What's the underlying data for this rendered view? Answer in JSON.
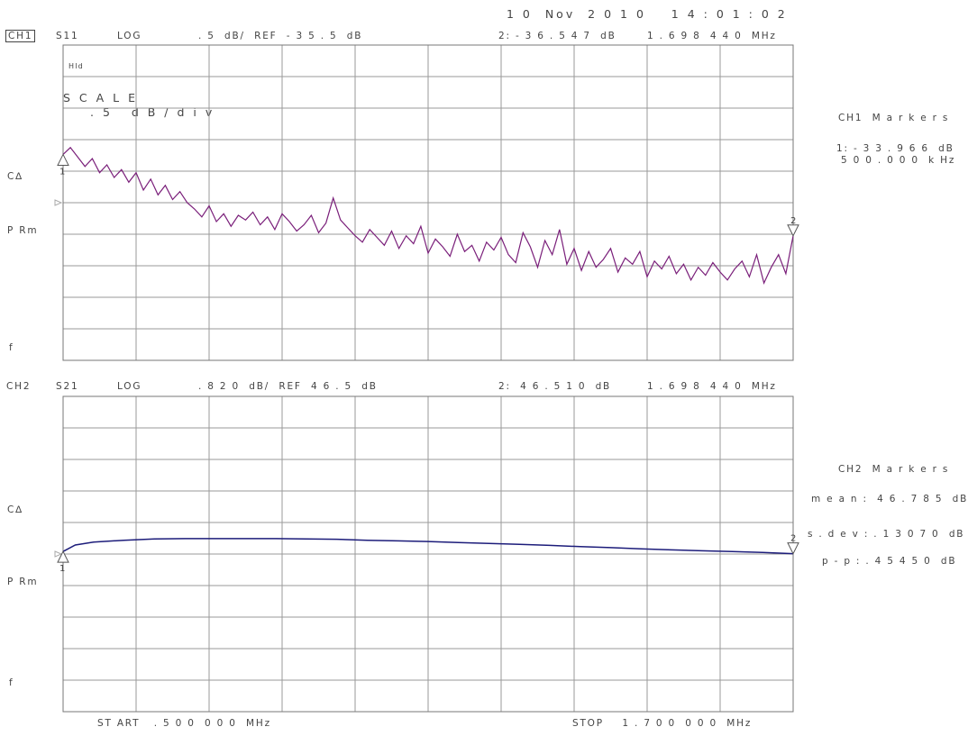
{
  "header": {
    "datetime": "1 0  Nov  2 0 1 0    1 4 : 0 1 : 0 2"
  },
  "ch1": {
    "channel": "CH1",
    "param": "S11",
    "format": "LOG",
    "scale": ". 5  dB/  REF  - 3 5 . 5  dB",
    "marker_readout_val": "2: - 3 6 . 5 4 7  dB",
    "marker_readout_freq": "1 . 6 9 8  4 4 0  MHz",
    "scale_title": "S C A L E",
    "scale_value": ". 5   d B / d i v",
    "corner_mark": "Hld",
    "left_labels": {
      "ca": "C∆",
      "prm": "P Rm",
      "f": "f"
    },
    "markers_title": "CH1  M a r k e r s",
    "marker1_val": "1: - 3 3 . 9 6 6  dB",
    "marker1_freq": "5 0 0 . 0 0 0  k Hz",
    "marker1_num": "1",
    "marker2_num": "2"
  },
  "ch2": {
    "channel": "CH2",
    "param": "S21",
    "format": "LOG",
    "scale": ". 8 2 0  dB/  REF  4 6 . 5  dB",
    "marker_readout_val": "2:  4 6 . 5 1 0  dB",
    "marker_readout_freq": "1 . 6 9 8  4 4 0  MHz",
    "left_labels": {
      "ca": "C∆",
      "prm": "P Rm",
      "f": "f"
    },
    "markers_title": "CH2  M a r k e r s",
    "mean": "m e a n :  4 6 . 7 8 5  dB",
    "sdev": "s . d e v : . 1 3 0 7 0  dB",
    "pp": "p - p : . 4 5 4 5 0  dB",
    "marker1_num": "1",
    "marker2_num": "2"
  },
  "footer": {
    "start": "ST ART   . 5 0 0  0 0 0  MHz",
    "stop": "STOP    1 . 7 0 0  0 0 0  MHz"
  },
  "colors": {
    "ch1_trace": "#7a1f7a",
    "ch2_trace": "#1c1c7a",
    "grid": "#9a9a9a"
  },
  "chart_data": [
    {
      "type": "line",
      "name": "S11",
      "xlim": [
        0.5,
        1.7
      ],
      "ylim": [
        -40.5,
        -30.5
      ],
      "ref": -35.5,
      "scale_per_div": 0.5,
      "xlabel": "MHz",
      "ylabel": "dB",
      "x": [
        0.5,
        0.512,
        0.524,
        0.536,
        0.548,
        0.56,
        0.572,
        0.584,
        0.596,
        0.608,
        0.62,
        0.632,
        0.644,
        0.656,
        0.668,
        0.68,
        0.692,
        0.704,
        0.716,
        0.728,
        0.74,
        0.752,
        0.764,
        0.776,
        0.788,
        0.8,
        0.812,
        0.824,
        0.836,
        0.848,
        0.86,
        0.872,
        0.884,
        0.896,
        0.908,
        0.92,
        0.932,
        0.944,
        0.956,
        0.968,
        0.98,
        0.992,
        1.004,
        1.016,
        1.028,
        1.04,
        1.052,
        1.064,
        1.076,
        1.088,
        1.1,
        1.112,
        1.124,
        1.136,
        1.148,
        1.16,
        1.172,
        1.184,
        1.196,
        1.208,
        1.22,
        1.232,
        1.244,
        1.256,
        1.268,
        1.28,
        1.292,
        1.304,
        1.316,
        1.328,
        1.34,
        1.352,
        1.364,
        1.376,
        1.388,
        1.4,
        1.412,
        1.424,
        1.436,
        1.448,
        1.46,
        1.472,
        1.484,
        1.496,
        1.508,
        1.52,
        1.532,
        1.544,
        1.556,
        1.568,
        1.58,
        1.592,
        1.604,
        1.616,
        1.628,
        1.64,
        1.652,
        1.664,
        1.676,
        1.688,
        1.7
      ],
      "y": [
        -33.97,
        -33.75,
        -34.05,
        -34.35,
        -34.1,
        -34.55,
        -34.3,
        -34.7,
        -34.45,
        -34.85,
        -34.55,
        -35.1,
        -34.75,
        -35.25,
        -34.95,
        -35.4,
        -35.15,
        -35.5,
        -35.7,
        -35.95,
        -35.6,
        -36.1,
        -35.85,
        -36.25,
        -35.9,
        -36.05,
        -35.8,
        -36.2,
        -35.95,
        -36.35,
        -35.85,
        -36.1,
        -36.4,
        -36.2,
        -35.9,
        -36.45,
        -36.15,
        -35.35,
        -36.05,
        -36.3,
        -36.55,
        -36.75,
        -36.35,
        -36.6,
        -36.85,
        -36.4,
        -36.95,
        -36.55,
        -36.8,
        -36.25,
        -37.1,
        -36.65,
        -36.9,
        -37.2,
        -36.5,
        -37.05,
        -36.85,
        -37.35,
        -36.75,
        -37.0,
        -36.6,
        -37.15,
        -37.4,
        -36.45,
        -36.9,
        -37.55,
        -36.7,
        -37.15,
        -36.35,
        -37.45,
        -36.95,
        -37.65,
        -37.05,
        -37.55,
        -37.3,
        -36.95,
        -37.7,
        -37.25,
        -37.45,
        -37.05,
        -37.85,
        -37.35,
        -37.6,
        -37.2,
        -37.75,
        -37.45,
        -37.95,
        -37.55,
        -37.8,
        -37.4,
        -37.7,
        -37.95,
        -37.6,
        -37.35,
        -37.85,
        -37.15,
        -38.05,
        -37.55,
        -37.15,
        -37.75,
        -36.55
      ]
    },
    {
      "type": "line",
      "name": "S21",
      "xlim": [
        0.5,
        1.7
      ],
      "ylim": [
        41.58,
        51.42
      ],
      "ref": 46.5,
      "scale_per_div": 0.82,
      "xlabel": "MHz",
      "ylabel": "dB",
      "x": [
        0.5,
        0.52,
        0.55,
        0.6,
        0.65,
        0.7,
        0.75,
        0.8,
        0.85,
        0.9,
        0.95,
        1.0,
        1.05,
        1.1,
        1.15,
        1.2,
        1.25,
        1.3,
        1.35,
        1.4,
        1.45,
        1.5,
        1.55,
        1.6,
        1.65,
        1.7
      ],
      "y": [
        46.58,
        46.78,
        46.87,
        46.93,
        46.97,
        46.98,
        46.98,
        46.98,
        46.98,
        46.97,
        46.96,
        46.93,
        46.91,
        46.89,
        46.86,
        46.83,
        46.8,
        46.77,
        46.73,
        46.7,
        46.66,
        46.63,
        46.6,
        46.58,
        46.55,
        46.51
      ]
    }
  ]
}
